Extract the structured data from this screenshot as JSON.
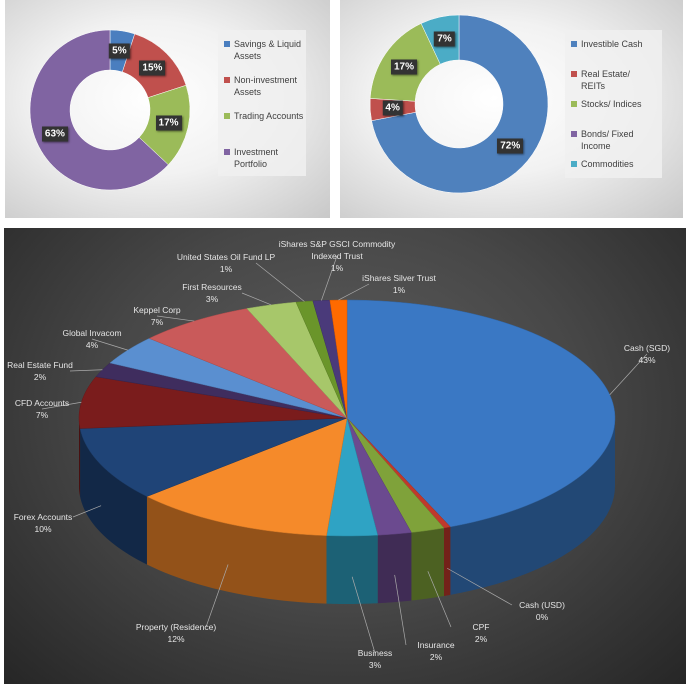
{
  "chart_data": [
    {
      "type": "pie",
      "style": "donut",
      "title": "",
      "categories": [
        "Savings & Liquid Assets",
        "Non-investment Assets",
        "Trading Accounts",
        "Investment Portfolio"
      ],
      "values": [
        5,
        15,
        17,
        63
      ],
      "data_labels": [
        "5%",
        "15%",
        "17%",
        "63%"
      ],
      "colors": [
        "#4a7ebf",
        "#c0504d",
        "#9bbb59",
        "#8064a2"
      ],
      "legend": "right"
    },
    {
      "type": "pie",
      "style": "donut",
      "title": "",
      "categories": [
        "Investible Cash",
        "Real Estate/ REITs",
        "Stocks/ Indices",
        "Bonds/ Fixed Income",
        "Commodities"
      ],
      "values": [
        72,
        4,
        17,
        0,
        7
      ],
      "data_labels": [
        "72%",
        "4%",
        "17%",
        "",
        "7%"
      ],
      "colors": [
        "#4f81bd",
        "#c0504d",
        "#9bbb59",
        "#8064a2",
        "#4bacc6"
      ],
      "legend": "right"
    },
    {
      "type": "pie",
      "style": "3d",
      "title": "",
      "categories": [
        "Cash (SGD)",
        "Cash (USD)",
        "CPF",
        "Insurance",
        "Business",
        "Property (Residence)",
        "Forex Accounts",
        "CFD Accounts",
        "Real Estate Fund",
        "Global Invacom",
        "Keppel Corp",
        "First Resources",
        "United States Oil Fund LP",
        "iShares S&P GSCI Commodity Indexed Trust",
        "iShares Silver Trust"
      ],
      "values": [
        43,
        0.4,
        2,
        2,
        3,
        12,
        10,
        7,
        2,
        4,
        7,
        3,
        1,
        1,
        1
      ],
      "data_labels": [
        "43%",
        "0%",
        "2%",
        "2%",
        "3%",
        "12%",
        "10%",
        "7%",
        "2%",
        "4%",
        "7%",
        "3%",
        "1%",
        "1%",
        "1%"
      ],
      "colors": [
        "#3a78c4",
        "#c0392b",
        "#7fa23a",
        "#6b4a8f",
        "#2fa3c4",
        "#f58a2a",
        "#1f4477",
        "#7a1c1c",
        "#3f2d5e",
        "#5a8fd0",
        "#c95a5a",
        "#a7c76a",
        "#6a952a",
        "#4a3a7a",
        "#ff6a00"
      ],
      "legend": "none"
    }
  ]
}
